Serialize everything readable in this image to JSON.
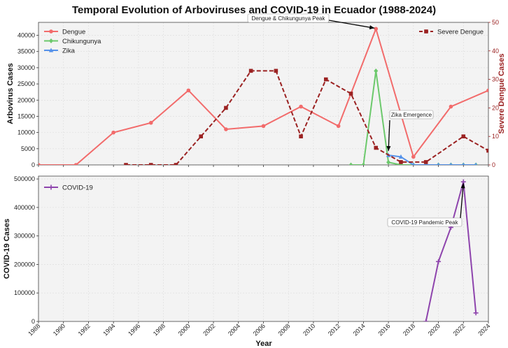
{
  "chart_data": {
    "title": "Temporal Evolution of Arboviruses and COVID-19 in Ecuador (1988-2024)",
    "xlabel": "Year",
    "xlim": [
      1988,
      2024
    ],
    "xticks": [
      "1988",
      "1990",
      "1992",
      "1994",
      "1996",
      "1998",
      "2000",
      "2002",
      "2004",
      "2006",
      "2008",
      "2010",
      "2012",
      "2014",
      "2016",
      "2018",
      "2020",
      "2022",
      "2024"
    ],
    "top_panel": {
      "type": "line",
      "ylabel_left": "Arbovirus Cases",
      "ylabel_right": "Severe Dengue Cases",
      "ylim_left": [
        0,
        44000
      ],
      "yticks_left": [
        "0",
        "5000",
        "10000",
        "15000",
        "20000",
        "25000",
        "30000",
        "35000",
        "40000"
      ],
      "ylim_right": [
        0,
        50
      ],
      "yticks_right": [
        "0",
        "10",
        "20",
        "30",
        "40",
        "50"
      ],
      "series": [
        {
          "name": "Dengue",
          "axis": "left",
          "color": "#f26b6b",
          "marker": "circle",
          "x": [
            1988,
            1991,
            1994,
            1997,
            2000,
            2003,
            2006,
            2009,
            2012,
            2015,
            2018,
            2021,
            2024
          ],
          "y": [
            0,
            0,
            10000,
            13000,
            23000,
            11000,
            12000,
            18000,
            12000,
            42000,
            2500,
            18000,
            23000
          ]
        },
        {
          "name": "Chikungunya",
          "axis": "left",
          "color": "#6cc96c",
          "marker": "diamond",
          "x": [
            2013,
            2014,
            2015,
            2016,
            2017,
            2018,
            2019,
            2020,
            2021,
            2022,
            2023
          ],
          "y": [
            0,
            0,
            29000,
            800,
            0,
            0,
            0,
            0,
            0,
            0,
            0
          ]
        },
        {
          "name": "Zika",
          "axis": "left",
          "color": "#5592ea",
          "marker": "triangle",
          "x": [
            2016,
            2017,
            2018,
            2019,
            2020,
            2021,
            2022,
            2023
          ],
          "y": [
            3000,
            2500,
            0,
            0,
            0,
            0,
            0,
            0
          ]
        },
        {
          "name": "Severe Dengue",
          "axis": "right",
          "color": "#9b2222",
          "marker": "square",
          "dashed": true,
          "x": [
            1995,
            1997,
            1999,
            2001,
            2003,
            2005,
            2007,
            2009,
            2011,
            2013,
            2015,
            2017,
            2019,
            2022,
            2024
          ],
          "y": [
            0,
            0,
            0,
            10,
            20,
            33,
            33,
            10,
            30,
            25,
            6,
            1,
            1,
            10,
            5
          ]
        }
      ],
      "annotations": [
        {
          "text": "Dengue & Chikungunya Peak",
          "x": 2015,
          "y": 42000
        },
        {
          "text": "Zika Emergence",
          "x": 2016,
          "y": 3000
        }
      ]
    },
    "bottom_panel": {
      "type": "line",
      "ylabel": "COVID-19 Cases",
      "ylim": [
        0,
        510000
      ],
      "yticks": [
        "0",
        "100000",
        "200000",
        "300000",
        "400000",
        "500000"
      ],
      "series": [
        {
          "name": "COVID-19",
          "color": "#8e44ad",
          "marker": "plus",
          "x": [
            2019,
            2020,
            2021,
            2022,
            2023
          ],
          "y": [
            0,
            210000,
            330000,
            490000,
            30000
          ]
        }
      ],
      "annotations": [
        {
          "text": "COVID-19 Pandemic Peak",
          "x": 2022,
          "y": 490000
        }
      ]
    }
  }
}
